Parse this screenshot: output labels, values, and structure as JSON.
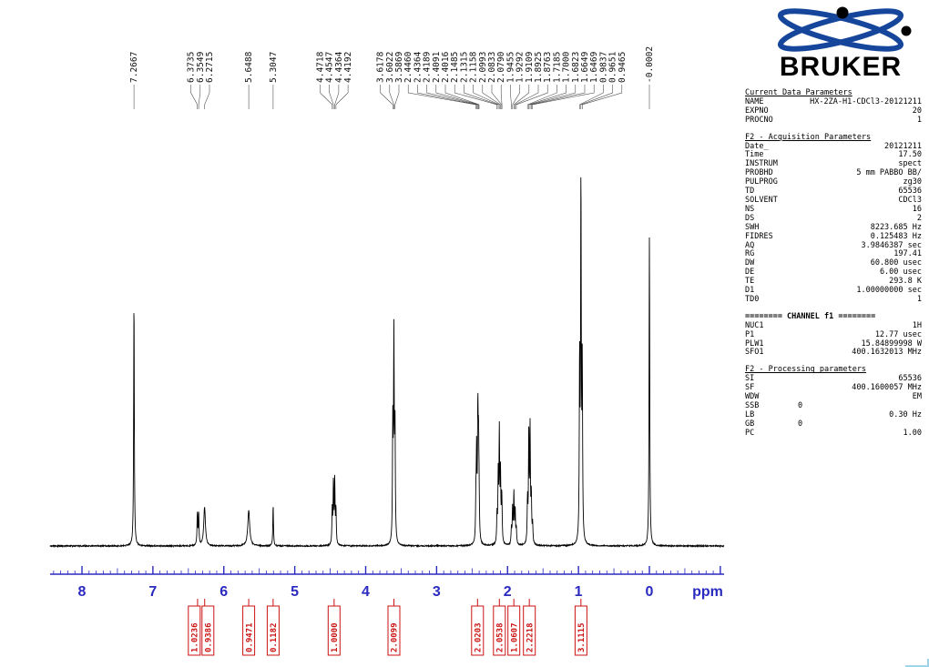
{
  "logo": {
    "text": "BRUKER"
  },
  "colors": {
    "axis": "#2a2ac0",
    "integral": "#cc1111",
    "trace": "#000000",
    "leader_line": "#444444",
    "logo_blue": "#16469b"
  },
  "axis": {
    "unit_label": "ppm",
    "major_ticks": [
      8,
      7,
      6,
      5,
      4,
      3,
      2,
      1,
      0
    ],
    "range": [
      8.45,
      -1.05
    ]
  },
  "params": {
    "title": "Current Data Parameters",
    "rows": [
      [
        "NAME",
        "HX-2ZA-H1-CDCl3-20121211"
      ],
      [
        "EXPNO",
        "20"
      ],
      [
        "PROCNO",
        "1"
      ]
    ],
    "sections": [
      {
        "header": "F2 - Acquisition Parameters",
        "underline": true,
        "bold": false,
        "rows": [
          [
            "Date_",
            "20121211"
          ],
          [
            "Time",
            "17.50"
          ],
          [
            "INSTRUM",
            "spect"
          ],
          [
            "PROBHD",
            "5 mm PABBO BB/"
          ],
          [
            "PULPROG",
            "zg30"
          ],
          [
            "TD",
            "65536"
          ],
          [
            "SOLVENT",
            "CDCl3"
          ],
          [
            "NS",
            "16"
          ],
          [
            "DS",
            "2"
          ],
          [
            "SWH",
            "8223.685 Hz"
          ],
          [
            "FIDRES",
            "0.125483 Hz"
          ],
          [
            "AQ",
            "3.9846387 sec"
          ],
          [
            "RG",
            "197.41"
          ],
          [
            "DW",
            "60.800 usec"
          ],
          [
            "DE",
            "6.00 usec"
          ],
          [
            "TE",
            "293.8 K"
          ],
          [
            "D1",
            "1.00000000 sec"
          ],
          [
            "TD0",
            "1"
          ]
        ]
      },
      {
        "header": "======== CHANNEL f1 ========",
        "underline": false,
        "bold": true,
        "rows": [
          [
            "NUC1",
            "1H"
          ],
          [
            "P1",
            "12.77 usec"
          ],
          [
            "PLW1",
            "15.84899998 W"
          ],
          [
            "SFO1",
            "400.1632013 MHz"
          ]
        ]
      },
      {
        "header": "F2 - Processing parameters",
        "underline": true,
        "bold": false,
        "rows": [
          [
            "SI",
            "65536"
          ],
          [
            "SF",
            "400.1600057 MHz"
          ],
          [
            "WDW",
            "EM"
          ],
          [
            "SSB",
            "0",
            "mid"
          ],
          [
            "LB",
            "0.30 Hz"
          ],
          [
            "GB",
            "0",
            "mid"
          ],
          [
            "PC",
            "1.00"
          ]
        ]
      }
    ]
  },
  "chart_data": {
    "type": "line",
    "title": "1H NMR spectrum",
    "xlabel": "ppm",
    "x_range": [
      8.45,
      -1.05
    ],
    "axis_major_ticks": [
      8,
      7,
      6,
      5,
      4,
      3,
      2,
      1,
      0
    ],
    "peaks": [
      {
        "ppm": 7.2667,
        "h": 0.64,
        "label": "7.2667"
      },
      {
        "ppm": 6.3735,
        "h": 0.082,
        "label": "6.3735"
      },
      {
        "ppm": 6.3549,
        "h": 0.085,
        "label": "6.3549"
      },
      {
        "ppm": 6.2715,
        "h": 0.1,
        "w": 0.014,
        "label": "6.2715"
      },
      {
        "ppm": 5.6488,
        "h": 0.092,
        "w": 0.016,
        "label": "5.6488"
      },
      {
        "ppm": 5.3047,
        "h": 0.105,
        "label": "5.3047"
      },
      {
        "ppm": 4.4718,
        "h": 0.09,
        "label": "4.4718"
      },
      {
        "ppm": 4.4547,
        "h": 0.16,
        "label": "4.4547"
      },
      {
        "ppm": 4.4364,
        "h": 0.16,
        "label": "4.4364"
      },
      {
        "ppm": 4.4192,
        "h": 0.09,
        "label": "4.4192"
      },
      {
        "ppm": 3.6178,
        "h": 0.3,
        "label": "3.6178"
      },
      {
        "ppm": 3.6022,
        "h": 0.52,
        "label": "3.6022"
      },
      {
        "ppm": 3.5869,
        "h": 0.3,
        "label": "3.5869"
      },
      {
        "ppm": 2.446,
        "h": 0.1,
        "label": "2.4460"
      },
      {
        "ppm": 2.4364,
        "h": 0.22,
        "label": "2.4364"
      },
      {
        "ppm": 2.4189,
        "h": 0.32,
        "label": "2.4189"
      },
      {
        "ppm": 2.4091,
        "h": 0.22,
        "label": "2.4091"
      },
      {
        "ppm": 2.4016,
        "h": 0.1,
        "label": "2.4016"
      },
      {
        "ppm": 2.1485,
        "h": 0.07,
        "label": "2.1485"
      },
      {
        "ppm": 2.1315,
        "h": 0.17,
        "label": "2.1315"
      },
      {
        "ppm": 2.1158,
        "h": 0.28,
        "label": "2.1158"
      },
      {
        "ppm": 2.0993,
        "h": 0.17,
        "label": "2.0993"
      },
      {
        "ppm": 2.0833,
        "h": 0.08,
        "label": "2.0833"
      },
      {
        "ppm": 2.079,
        "h": 0.06,
        "label": "2.0790"
      },
      {
        "ppm": 1.9455,
        "h": 0.04,
        "label": "1.9455"
      },
      {
        "ppm": 1.9292,
        "h": 0.09,
        "label": "1.9292"
      },
      {
        "ppm": 1.9109,
        "h": 0.13,
        "label": "1.9109"
      },
      {
        "ppm": 1.8925,
        "h": 0.09,
        "label": "1.8925"
      },
      {
        "ppm": 1.8763,
        "h": 0.04,
        "label": "1.8763"
      },
      {
        "ppm": 1.7185,
        "h": 0.11,
        "label": "1.7185"
      },
      {
        "ppm": 1.7,
        "h": 0.29,
        "label": "1.7000"
      },
      {
        "ppm": 1.6823,
        "h": 0.29,
        "label": "1.6823"
      },
      {
        "ppm": 1.6649,
        "h": 0.12,
        "label": "1.6649"
      },
      {
        "ppm": 1.6469,
        "h": 0.05,
        "label": "1.6469"
      },
      {
        "ppm": 0.9837,
        "h": 0.46,
        "label": "0.9837"
      },
      {
        "ppm": 0.9651,
        "h": 0.92,
        "label": "0.9651"
      },
      {
        "ppm": 0.9465,
        "h": 0.44,
        "label": "0.9465"
      },
      {
        "ppm": -0.0002,
        "h": 0.8,
        "label": "-0.0002"
      }
    ],
    "integrals": [
      {
        "value": "1.0236",
        "ppm": 6.37
      },
      {
        "value": "0.9386",
        "ppm": 6.27
      },
      {
        "value": "0.9471",
        "ppm": 5.649
      },
      {
        "value": "0.1182",
        "ppm": 5.305
      },
      {
        "value": "1.0000",
        "ppm": 4.445
      },
      {
        "value": "2.0099",
        "ppm": 3.602
      },
      {
        "value": "2.0203",
        "ppm": 2.423
      },
      {
        "value": "2.0538",
        "ppm": 2.115
      },
      {
        "value": "1.0607",
        "ppm": 1.911
      },
      {
        "value": "2.2218",
        "ppm": 1.693
      },
      {
        "value": "3.1115",
        "ppm": 0.965
      }
    ]
  }
}
